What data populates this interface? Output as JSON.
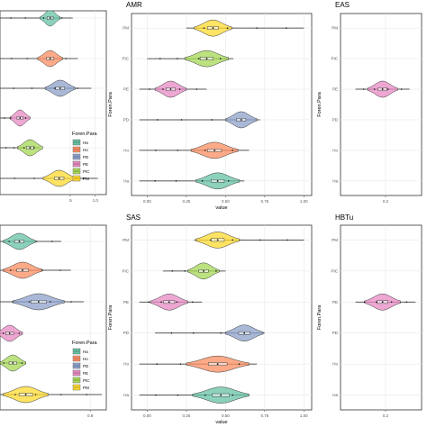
{
  "colors": {
    "Ha": "#66c2a5",
    "Ho": "#fc8d62",
    "PD": "#8da0cb",
    "PE": "#e78ac3",
    "PIC": "#a6d854",
    "PM": "#ffd92f",
    "grid": "#e8e8e8",
    "panel_border": "#333333"
  },
  "legend": {
    "title": "Foren.Para",
    "items": [
      "Ha",
      "Ho",
      "PD",
      "PE",
      "PIC",
      "PM"
    ]
  },
  "chart_data": [
    {
      "type": "violin",
      "title": "",
      "xlabel": "",
      "ylabel": "",
      "xlim": [
        -0.9,
        1.22
      ],
      "xticks": [
        0.5,
        1.0
      ],
      "xtick_labels": [
        ".5",
        "1.0"
      ],
      "categories": [
        "Ha",
        "Ho",
        "PD",
        "PE",
        "PIC",
        "PM"
      ],
      "show_y_ticks": false,
      "legend": true,
      "series": [
        {
          "name": "PM",
          "center": 0.28,
          "spread": 0.32,
          "min": -0.9,
          "max": 1.05
        },
        {
          "name": "PIC",
          "center": -0.3,
          "spread": 0.25,
          "min": -0.9,
          "max": -0.1
        },
        {
          "name": "PE",
          "center": -0.5,
          "spread": 0.2,
          "min": -0.9,
          "max": -0.3
        },
        {
          "name": "PD",
          "center": 0.3,
          "spread": 0.3,
          "min": -0.9,
          "max": 0.92
        },
        {
          "name": "Ho",
          "center": 0.1,
          "spread": 0.25,
          "min": -0.9,
          "max": 0.65
        },
        {
          "name": "Ha",
          "center": 0.1,
          "spread": 0.2,
          "min": -0.9,
          "max": 0.55
        }
      ]
    },
    {
      "type": "violin",
      "title": "AMR",
      "xlabel": "value",
      "ylabel": "Foren.Para",
      "xlim": [
        -0.1,
        1.05
      ],
      "xticks": [
        0.0,
        0.25,
        0.5,
        0.75,
        1.0
      ],
      "xtick_labels": [
        "0.00",
        "0.25",
        "0.50",
        "0.75",
        "1.00"
      ],
      "categories": [
        "PM",
        "PIC",
        "PE",
        "PD",
        "Ho",
        "Ha"
      ],
      "show_y_ticks": true,
      "legend": false,
      "series": [
        {
          "name": "PM",
          "center": 0.42,
          "spread": 0.12,
          "min": 0.25,
          "max": 1.0
        },
        {
          "name": "PIC",
          "center": 0.38,
          "spread": 0.14,
          "min": 0.0,
          "max": 0.55
        },
        {
          "name": "PE",
          "center": 0.15,
          "spread": 0.1,
          "min": -0.05,
          "max": 0.38
        },
        {
          "name": "PD",
          "center": 0.6,
          "spread": 0.1,
          "min": -0.05,
          "max": 0.72
        },
        {
          "name": "Ho",
          "center": 0.43,
          "spread": 0.15,
          "min": -0.05,
          "max": 0.65
        },
        {
          "name": "Ha",
          "center": 0.45,
          "spread": 0.14,
          "min": -0.05,
          "max": 0.62
        }
      ]
    },
    {
      "type": "violin",
      "title": "EAS",
      "xlabel": "",
      "ylabel": "Foren.Para",
      "xlim": [
        0.05,
        0.32
      ],
      "xticks": [
        0.2
      ],
      "xtick_labels": [
        "0.2"
      ],
      "categories": [
        "PM",
        "PIC",
        "PE",
        "PD",
        "Ho",
        "Ha"
      ],
      "show_y_ticks": true,
      "legend": false,
      "series": [
        {
          "name": "PE",
          "center": 0.19,
          "spread": 0.05,
          "min": 0.1,
          "max": 0.28
        }
      ]
    },
    {
      "type": "violin",
      "title": "",
      "xlabel": "",
      "ylabel": "",
      "xlim": [
        -0.6,
        1.05
      ],
      "xticks": [
        0.8
      ],
      "xtick_labels": [
        "0.8"
      ],
      "categories": [
        "Ha",
        "Ho",
        "PD",
        "PE",
        "PIC",
        "PM"
      ],
      "show_y_ticks": false,
      "legend": true,
      "series": [
        {
          "name": "PM",
          "center": -0.2,
          "spread": 0.35,
          "min": -0.6,
          "max": 0.98
        },
        {
          "name": "PIC",
          "center": -0.4,
          "spread": 0.2,
          "min": -0.6,
          "max": -0.2
        },
        {
          "name": "PE",
          "center": -0.45,
          "spread": 0.2,
          "min": -0.6,
          "max": -0.25
        },
        {
          "name": "PD",
          "center": 0.0,
          "spread": 0.4,
          "min": -0.6,
          "max": 0.7
        },
        {
          "name": "Ho",
          "center": -0.25,
          "spread": 0.3,
          "min": -0.6,
          "max": 0.5
        },
        {
          "name": "Ha",
          "center": -0.3,
          "spread": 0.25,
          "min": -0.6,
          "max": 0.35
        }
      ]
    },
    {
      "type": "violin",
      "title": "SAS",
      "xlabel": "value",
      "ylabel": "Foren.Para",
      "xlim": [
        -0.1,
        1.05
      ],
      "xticks": [
        0.0,
        0.25,
        0.5,
        0.75,
        1.0
      ],
      "xtick_labels": [
        "0.00",
        "0.25",
        "0.50",
        "0.75",
        "1.00"
      ],
      "categories": [
        "PM",
        "PIC",
        "PE",
        "PD",
        "Ho",
        "Ha"
      ],
      "show_y_ticks": true,
      "legend": false,
      "series": [
        {
          "name": "PM",
          "center": 0.45,
          "spread": 0.14,
          "min": 0.3,
          "max": 1.0
        },
        {
          "name": "PIC",
          "center": 0.36,
          "spread": 0.1,
          "min": 0.1,
          "max": 0.5
        },
        {
          "name": "PE",
          "center": 0.14,
          "spread": 0.12,
          "min": -0.05,
          "max": 0.35
        },
        {
          "name": "PD",
          "center": 0.62,
          "spread": 0.12,
          "min": 0.05,
          "max": 0.75
        },
        {
          "name": "Ho",
          "center": 0.45,
          "spread": 0.2,
          "min": -0.05,
          "max": 0.7
        },
        {
          "name": "Ha",
          "center": 0.47,
          "spread": 0.18,
          "min": -0.05,
          "max": 0.65
        }
      ]
    },
    {
      "type": "violin",
      "title": "HBTu",
      "xlabel": "",
      "ylabel": "Foren.Para",
      "xlim": [
        0.05,
        0.32
      ],
      "xticks": [
        0.2
      ],
      "xtick_labels": [
        "0.2"
      ],
      "categories": [
        "PM",
        "PIC",
        "PE",
        "PD",
        "Ho",
        "Ha"
      ],
      "show_y_ticks": true,
      "legend": false,
      "series": [
        {
          "name": "PE",
          "center": 0.19,
          "spread": 0.06,
          "min": 0.1,
          "max": 0.3
        }
      ]
    }
  ]
}
